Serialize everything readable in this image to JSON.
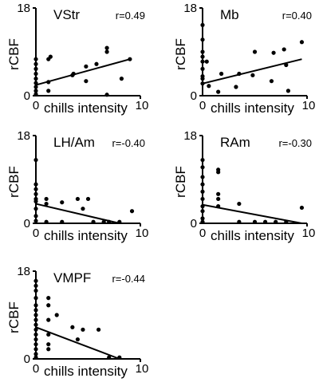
{
  "chart_data": [
    {
      "type": "scatter",
      "title": "VStr",
      "annotation": "r=0.49",
      "xlabel": "chills intensity",
      "ylabel": "rCBF",
      "xlim": [
        0,
        10
      ],
      "ylim": [
        0,
        18
      ],
      "x_ticks": [
        "0",
        "10"
      ],
      "y_ticks": [
        "0",
        "18"
      ],
      "fit_line": [
        [
          0,
          2.2
        ],
        [
          9.0,
          7.5
        ]
      ],
      "points": [
        [
          0,
          0.3
        ],
        [
          0,
          1.0
        ],
        [
          0,
          1.8
        ],
        [
          0,
          2.6
        ],
        [
          0,
          3.5
        ],
        [
          0,
          4.5
        ],
        [
          0,
          5.5
        ],
        [
          0,
          6.5
        ],
        [
          0,
          7.5
        ],
        [
          1.2,
          1.0
        ],
        [
          1.2,
          2.8
        ],
        [
          1.2,
          7.5
        ],
        [
          1.4,
          8.0
        ],
        [
          3.5,
          4.2
        ],
        [
          3.6,
          4.5
        ],
        [
          4.8,
          3.0
        ],
        [
          4.8,
          6.0
        ],
        [
          5.8,
          6.5
        ],
        [
          6.8,
          9.0
        ],
        [
          6.8,
          9.8
        ],
        [
          6.8,
          0.2
        ],
        [
          8.2,
          3.5
        ],
        [
          9.0,
          7.5
        ]
      ]
    },
    {
      "type": "scatter",
      "title": "Mb",
      "annotation": "r=0.40",
      "xlabel": "chills intensity",
      "ylabel": "rCBF",
      "xlim": [
        0,
        10
      ],
      "ylim": [
        0,
        18
      ],
      "x_ticks": [
        "0",
        "10"
      ],
      "y_ticks": [
        "0",
        "18"
      ],
      "fit_line": [
        [
          0,
          2.5
        ],
        [
          9.5,
          7.5
        ]
      ],
      "points": [
        [
          0,
          14.5
        ],
        [
          0,
          11.5
        ],
        [
          0,
          9.0
        ],
        [
          0,
          8.0
        ],
        [
          0,
          7.0
        ],
        [
          0,
          5.5
        ],
        [
          0,
          4.0
        ],
        [
          0,
          3.5
        ],
        [
          0,
          2.5
        ],
        [
          0.4,
          7.0
        ],
        [
          0.6,
          2.0
        ],
        [
          1.8,
          4.5
        ],
        [
          1.5,
          0.8
        ],
        [
          3.5,
          4.5
        ],
        [
          3.2,
          1.8
        ],
        [
          5.0,
          9.0
        ],
        [
          4.8,
          4.2
        ],
        [
          6.8,
          8.8
        ],
        [
          6.6,
          3.0
        ],
        [
          7.8,
          9.5
        ],
        [
          8.0,
          6.3
        ],
        [
          8.2,
          1.0
        ],
        [
          9.5,
          11.0
        ]
      ]
    },
    {
      "type": "scatter",
      "title": "LH/Am",
      "annotation": "r=-0.40",
      "xlabel": "chills intensity",
      "ylabel": "rCBF",
      "xlim": [
        0,
        10
      ],
      "ylim": [
        0,
        18
      ],
      "x_ticks": [
        "0",
        "10"
      ],
      "y_ticks": [
        "0",
        "18"
      ],
      "fit_line": [
        [
          0,
          4.0
        ],
        [
          8.0,
          0
        ]
      ],
      "points": [
        [
          0,
          13.0
        ],
        [
          0,
          8.0
        ],
        [
          0,
          7.0
        ],
        [
          0,
          6.0
        ],
        [
          0,
          5.0
        ],
        [
          0,
          4.5
        ],
        [
          0,
          3.0
        ],
        [
          0,
          1.5
        ],
        [
          0,
          0.5
        ],
        [
          1.0,
          5.0
        ],
        [
          1.0,
          4.0
        ],
        [
          1.0,
          0.3
        ],
        [
          2.5,
          4.3
        ],
        [
          2.5,
          0.3
        ],
        [
          4.0,
          5.0
        ],
        [
          4.5,
          3.0
        ],
        [
          5.0,
          5.0
        ],
        [
          5.5,
          0.3
        ],
        [
          6.5,
          0.3
        ],
        [
          7.0,
          0.3
        ],
        [
          8.0,
          0.3
        ],
        [
          9.2,
          2.5
        ]
      ]
    },
    {
      "type": "scatter",
      "title": "RAm",
      "annotation": "r=-0.30",
      "xlabel": "chills intensity",
      "ylabel": "rCBF",
      "xlim": [
        0,
        10
      ],
      "ylim": [
        0,
        18
      ],
      "x_ticks": [
        "0",
        "10"
      ],
      "y_ticks": [
        "0",
        "18"
      ],
      "fit_line": [
        [
          0,
          3.8
        ],
        [
          9.5,
          0
        ]
      ],
      "points": [
        [
          0,
          13.0
        ],
        [
          0,
          11.5
        ],
        [
          0,
          9.5
        ],
        [
          0,
          8.0
        ],
        [
          0,
          6.5
        ],
        [
          0,
          5.0
        ],
        [
          0,
          3.5
        ],
        [
          0,
          2.5
        ],
        [
          0,
          1.0
        ],
        [
          0,
          0.3
        ],
        [
          1.5,
          11.0
        ],
        [
          1.5,
          10.5
        ],
        [
          1.5,
          6.0
        ],
        [
          1.5,
          5.0
        ],
        [
          1.5,
          3.5
        ],
        [
          3.5,
          4.0
        ],
        [
          3.5,
          0.3
        ],
        [
          5.0,
          0.3
        ],
        [
          6.0,
          0.3
        ],
        [
          7.0,
          0.3
        ],
        [
          8.0,
          0.3
        ],
        [
          9.5,
          3.2
        ]
      ]
    },
    {
      "type": "scatter",
      "title": "VMPF",
      "annotation": "r=-0.44",
      "xlabel": "chills intensity",
      "ylabel": "rCBF",
      "xlim": [
        0,
        10
      ],
      "ylim": [
        0,
        18
      ],
      "x_ticks": [
        "0",
        "10"
      ],
      "y_ticks": [
        "0",
        "18"
      ],
      "fit_line": [
        [
          0,
          6.5
        ],
        [
          8.0,
          0
        ]
      ],
      "points": [
        [
          0,
          16.0
        ],
        [
          0,
          15.0
        ],
        [
          0,
          14.0
        ],
        [
          0,
          12.5
        ],
        [
          0,
          11.0
        ],
        [
          0,
          10.0
        ],
        [
          0,
          9.0
        ],
        [
          0,
          8.0
        ],
        [
          0,
          7.0
        ],
        [
          0,
          6.0
        ],
        [
          0,
          5.0
        ],
        [
          0,
          4.0
        ],
        [
          0,
          3.0
        ],
        [
          0,
          2.0
        ],
        [
          0,
          1.0
        ],
        [
          0,
          0.3
        ],
        [
          1.2,
          12.5
        ],
        [
          1.2,
          11.0
        ],
        [
          1.2,
          8.0
        ],
        [
          1.2,
          5.0
        ],
        [
          1.2,
          3.0
        ],
        [
          1.2,
          2.0
        ],
        [
          2.0,
          9.0
        ],
        [
          3.5,
          6.5
        ],
        [
          4.5,
          6.0
        ],
        [
          4.0,
          4.0
        ],
        [
          6.0,
          6.0
        ],
        [
          7.0,
          0.3
        ],
        [
          8.0,
          0.3
        ]
      ]
    }
  ]
}
